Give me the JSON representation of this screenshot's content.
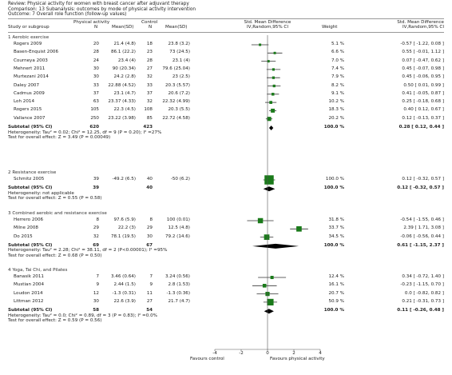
{
  "header": {
    "review": "Review:  Physical activity for women with breast cancer after adjuvant therapy",
    "comparison": "Comparison:  13 Subanalysis: outcomes by mode of physical activity intervention",
    "outcome": "Outcome:  7 Overall role function (follow-up values)"
  },
  "columns": {
    "study": "Study or subgroup",
    "group1": "Physical activity",
    "group2": "Control",
    "n": "N",
    "mean_sd": "Mean(SD)",
    "effect_title": "Std. Mean Difference",
    "effect_method": "IV,Random,95% CI",
    "weight": "Weight",
    "effect_title2": "Std. Mean Difference",
    "effect_method2": "IV,Random,95% CI"
  },
  "groups": [
    {
      "title": "1 Aerobic exercise",
      "studies": [
        {
          "name": "Rogers 2009",
          "n1": "20",
          "ms1": "21.4 (4.8)",
          "n2": "18",
          "ms2": "23.8 (3.2)",
          "weight": "5.1 %",
          "ci": "-0.57 [ -1.22, 0.08 ]",
          "est": -0.57,
          "lo": -1.22,
          "hi": 0.08,
          "w": 5.1
        },
        {
          "name": "Basen-Enquist 2006",
          "n1": "28",
          "ms1": "86.1 (22.2)",
          "n2": "23",
          "ms2": "73 (24.5)",
          "weight": "6.6 %",
          "ci": "0.55 [ -0.01, 1.12 ]",
          "est": 0.55,
          "lo": -0.01,
          "hi": 1.12,
          "w": 6.6
        },
        {
          "name": "Courneya 2003",
          "n1": "24",
          "ms1": "23.4 (4)",
          "n2": "28",
          "ms2": "23.1 (4)",
          "weight": "7.0 %",
          "ci": "0.07 [ -0.47, 0.62 ]",
          "est": 0.07,
          "lo": -0.47,
          "hi": 0.62,
          "w": 7.0
        },
        {
          "name": "Mehnert 2011",
          "n1": "30",
          "ms1": "90 (20.34)",
          "n2": "27",
          "ms2": "79.6 (25.04)",
          "weight": "7.4 %",
          "ci": "0.45 [ -0.07, 0.98 ]",
          "est": 0.45,
          "lo": -0.07,
          "hi": 0.98,
          "w": 7.4
        },
        {
          "name": "Murtezani 2014",
          "n1": "30",
          "ms1": "24.2 (2.8)",
          "n2": "32",
          "ms2": "23 (2.5)",
          "weight": "7.9 %",
          "ci": "0.45 [ -0.06, 0.95 ]",
          "est": 0.45,
          "lo": -0.06,
          "hi": 0.95,
          "w": 7.9
        },
        {
          "name": "Daley 2007",
          "n1": "33",
          "ms1": "22.88 (4.52)",
          "n2": "33",
          "ms2": "20.3 (5.57)",
          "weight": "8.2 %",
          "ci": "0.50 [ 0.01, 0.99 ]",
          "est": 0.5,
          "lo": 0.01,
          "hi": 0.99,
          "w": 8.2
        },
        {
          "name": "Cadmus 2009",
          "n1": "37",
          "ms1": "23.1 (4.7)",
          "n2": "37",
          "ms2": "20.6 (7.2)",
          "weight": "9.1 %",
          "ci": "0.41 [ -0.05, 0.87 ]",
          "est": 0.41,
          "lo": -0.05,
          "hi": 0.87,
          "w": 9.1
        },
        {
          "name": "Loh 2014",
          "n1": "63",
          "ms1": "23.37 (4.33)",
          "n2": "32",
          "ms2": "22.32 (4.99)",
          "weight": "10.2 %",
          "ci": "0.25 [ -0.18, 0.68 ]",
          "est": 0.25,
          "lo": -0.18,
          "hi": 0.68,
          "w": 10.2
        },
        {
          "name": "Rogers 2015",
          "n1": "105",
          "ms1": "22.3 (4.5)",
          "n2": "108",
          "ms2": "20.3 (5.5)",
          "weight": "18.3 %",
          "ci": "0.40 [ 0.12, 0.67 ]",
          "est": 0.4,
          "lo": 0.12,
          "hi": 0.67,
          "w": 18.3
        },
        {
          "name": "Vallance 2007",
          "n1": "250",
          "ms1": "23.22 (3.98)",
          "n2": "85",
          "ms2": "22.72 (4.58)",
          "weight": "20.2 %",
          "ci": "0.12 [ -0.13, 0.37 ]",
          "est": 0.12,
          "lo": -0.13,
          "hi": 0.37,
          "w": 20.2
        }
      ],
      "subtotal": {
        "label": "Subtotal (95% CI)",
        "n1": "620",
        "n2": "423",
        "weight": "100.0 %",
        "ci": "0.28 [ 0.12, 0.44 ]",
        "est": 0.28,
        "lo": 0.12,
        "hi": 0.44
      },
      "het": "Heterogeneity: Tau² = 0.02; Chi² = 12.25, df = 9 (P = 0.20); I² =27%",
      "test": "Test for overall effect: Z = 3.49 (P = 0.00049)"
    },
    {
      "title": "2 Resistance exercise",
      "studies": [
        {
          "name": "Schmitz 2005",
          "n1": "39",
          "ms1": "-49.2 (6.5)",
          "n2": "40",
          "ms2": "-50 (6.2)",
          "weight": "100.0 %",
          "ci": "0.12 [ -0.32, 0.57 ]",
          "est": 0.12,
          "lo": -0.32,
          "hi": 0.57,
          "w": 100
        }
      ],
      "subtotal": {
        "label": "Subtotal (95% CI)",
        "n1": "39",
        "n2": "40",
        "weight": "100.0 %",
        "ci": "0.12 [ -0.32, 0.57 ]",
        "est": 0.12,
        "lo": -0.32,
        "hi": 0.57
      },
      "het": "Heterogeneity: not applicable",
      "test": "Test for overall effect: Z = 0.55 (P = 0.58)"
    },
    {
      "title": "3 Combined aerobic and resistance exercise",
      "studies": [
        {
          "name": "Herrero 2006",
          "n1": "8",
          "ms1": "97.6 (5.9)",
          "n2": "8",
          "ms2": "100 (0.01)",
          "weight": "31.8 %",
          "ci": "-0.54 [ -1.55, 0.46 ]",
          "est": -0.54,
          "lo": -1.55,
          "hi": 0.46,
          "w": 31.8
        },
        {
          "name": "Milne 2008",
          "n1": "29",
          "ms1": "22.2 (3)",
          "n2": "29",
          "ms2": "12.5 (4.8)",
          "weight": "33.7 %",
          "ci": "2.39 [ 1.71, 3.08 ]",
          "est": 2.39,
          "lo": 1.71,
          "hi": 3.08,
          "w": 33.7
        },
        {
          "name": "Do 2015",
          "n1": "32",
          "ms1": "78.1 (19.5)",
          "n2": "30",
          "ms2": "79.2 (14.6)",
          "weight": "34.5 %",
          "ci": "-0.06 [ -0.56, 0.44 ]",
          "est": -0.06,
          "lo": -0.56,
          "hi": 0.44,
          "w": 34.5
        }
      ],
      "subtotal": {
        "label": "Subtotal (95% CI)",
        "n1": "69",
        "n2": "67",
        "weight": "100.0 %",
        "ci": "0.61 [ -1.15, 2.37 ]",
        "est": 0.61,
        "lo": -1.15,
        "hi": 2.37
      },
      "het": "Heterogeneity: Tau² = 2.28; Chi² = 38.11, df = 2 (P<0.00001); I² =95%",
      "test": "Test for overall effect: Z = 0.68 (P = 0.50)"
    },
    {
      "title": "4 Yoga, Tai Chi, and Pilates",
      "studies": [
        {
          "name": "Banasik 2011",
          "n1": "7",
          "ms1": "3.46 (0.64)",
          "n2": "7",
          "ms2": "3.24 (0.56)",
          "weight": "12.4 %",
          "ci": "0.34 [ -0.72, 1.40 ]",
          "est": 0.34,
          "lo": -0.72,
          "hi": 1.4,
          "w": 12.4
        },
        {
          "name": "Mustian 2004",
          "n1": "9",
          "ms1": "2.44 (1.5)",
          "n2": "9",
          "ms2": "2.8 (1.53)",
          "weight": "16.1 %",
          "ci": "-0.23 [ -1.15, 0.70 ]",
          "est": -0.23,
          "lo": -1.15,
          "hi": 0.7,
          "w": 16.1
        },
        {
          "name": "Loudon 2014",
          "n1": "12",
          "ms1": "-1.3 (0.31)",
          "n2": "11",
          "ms2": "-1.3 (0.36)",
          "weight": "20.7 %",
          "ci": "0.0 [ -0.82, 0.82 ]",
          "est": 0.0,
          "lo": -0.82,
          "hi": 0.82,
          "w": 20.7
        },
        {
          "name": "Littman 2012",
          "n1": "30",
          "ms1": "22.6 (3.9)",
          "n2": "27",
          "ms2": "21.7 (4.7)",
          "weight": "50.9 %",
          "ci": "0.21 [ -0.31, 0.73 ]",
          "est": 0.21,
          "lo": -0.31,
          "hi": 0.73,
          "w": 50.9
        }
      ],
      "subtotal": {
        "label": "Subtotal (95% CI)",
        "n1": "58",
        "n2": "54",
        "weight": "100.0 %",
        "ci": "0.11 [ -0.26, 0.48 ]",
        "est": 0.11,
        "lo": -0.26,
        "hi": 0.48
      },
      "het": "Heterogeneity: Tau² = 0.0; Chi² = 0.89, df = 3 (P = 0.83); I² =0.0%",
      "test": "Test for overall effect: Z = 0.59 (P = 0.56)"
    }
  ],
  "axis": {
    "ticks": [
      -4,
      -2,
      0,
      2,
      4
    ],
    "tick_labels": [
      "-4",
      "-2",
      "0",
      "2",
      "4"
    ],
    "left_label": "Favours control",
    "right_label": "Favours physical activity",
    "range": [
      -4,
      4
    ]
  },
  "colors": {
    "marker": "#1a7a1a",
    "diamond": "#000000",
    "line": "#333333"
  }
}
